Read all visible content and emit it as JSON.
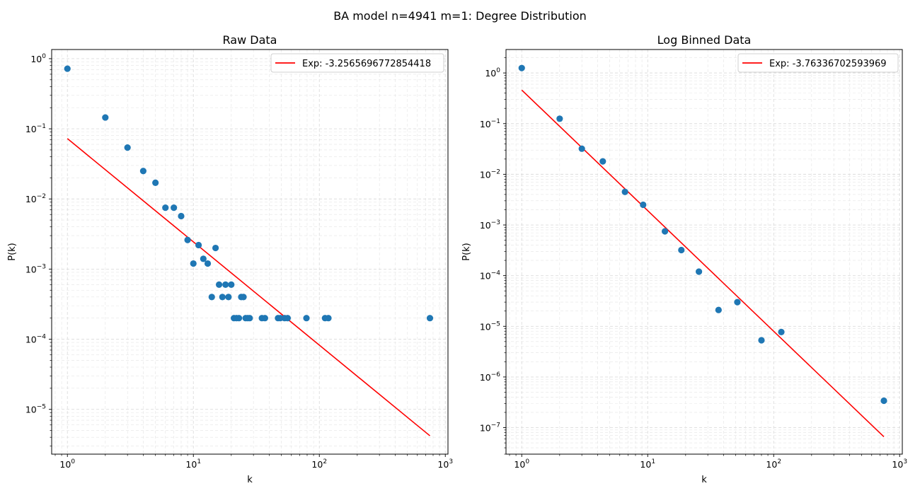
{
  "figure": {
    "suptitle": "BA model n=4941 m=1: Degree Distribution"
  },
  "colors": {
    "points": "#1f77b4",
    "fit": "#ff0000",
    "grid": "#d9d9d9"
  },
  "chart_data": [
    {
      "type": "scatter",
      "title": "Raw Data",
      "xlabel": "k",
      "ylabel": "P(k)",
      "xscale": "log",
      "yscale": "log",
      "xlim": [
        0.75,
        1050
      ],
      "ylim": [
        2.3e-06,
        1.35
      ],
      "grid": true,
      "legend": "top-right",
      "x_ticks": [
        {
          "value": 1,
          "base": "10",
          "exp": "0"
        },
        {
          "value": 10,
          "base": "10",
          "exp": "1"
        },
        {
          "value": 100,
          "base": "10",
          "exp": "2"
        },
        {
          "value": 1000,
          "base": "10",
          "exp": "3"
        }
      ],
      "y_ticks": [
        {
          "value": 1e-05,
          "base": "10",
          "exp": "−5"
        },
        {
          "value": 0.0001,
          "base": "10",
          "exp": "−4"
        },
        {
          "value": 0.001,
          "base": "10",
          "exp": "−3"
        },
        {
          "value": 0.01,
          "base": "10",
          "exp": "−2"
        },
        {
          "value": 0.1,
          "base": "10",
          "exp": "−1"
        },
        {
          "value": 1,
          "base": "10",
          "exp": "0"
        }
      ],
      "points": {
        "x": [
          1,
          2,
          3,
          4,
          5,
          6,
          7,
          8,
          9,
          10,
          11,
          12,
          13,
          14,
          15,
          16,
          17,
          18,
          19,
          20,
          21,
          22,
          23,
          24,
          25,
          26,
          27,
          28,
          35,
          37,
          47,
          49,
          53,
          56,
          79,
          111,
          118,
          755
        ],
        "y": [
          0.72,
          0.145,
          0.054,
          0.025,
          0.017,
          0.0075,
          0.0075,
          0.0057,
          0.0026,
          0.0012,
          0.0022,
          0.0014,
          0.0012,
          0.0004,
          0.002,
          0.0006,
          0.0004,
          0.0006,
          0.0004,
          0.0006,
          0.0002,
          0.0002,
          0.0002,
          0.0004,
          0.0004,
          0.0002,
          0.0002,
          0.0002,
          0.0002,
          0.0002,
          0.0002,
          0.0002,
          0.0002,
          0.0002,
          0.0002,
          0.0002,
          0.0002,
          0.0002
        ]
      },
      "fit": {
        "label": "Exp: -3.2565696772854418",
        "x": [
          1,
          755
        ],
        "y": [
          0.0725,
          4.2e-06
        ]
      }
    },
    {
      "type": "scatter",
      "title": "Log Binned Data",
      "xlabel": "k",
      "ylabel": "P(k)",
      "xscale": "log",
      "yscale": "log",
      "xlim": [
        0.75,
        1050
      ],
      "ylim": [
        3e-08,
        2.9
      ],
      "grid": true,
      "legend": "top-right",
      "x_ticks": [
        {
          "value": 1,
          "base": "10",
          "exp": "0"
        },
        {
          "value": 10,
          "base": "10",
          "exp": "1"
        },
        {
          "value": 100,
          "base": "10",
          "exp": "2"
        },
        {
          "value": 1000,
          "base": "10",
          "exp": "3"
        }
      ],
      "y_ticks": [
        {
          "value": 1e-07,
          "base": "10",
          "exp": "−7"
        },
        {
          "value": 1e-06,
          "base": "10",
          "exp": "−6"
        },
        {
          "value": 1e-05,
          "base": "10",
          "exp": "−5"
        },
        {
          "value": 0.0001,
          "base": "10",
          "exp": "−4"
        },
        {
          "value": 0.001,
          "base": "10",
          "exp": "−3"
        },
        {
          "value": 0.01,
          "base": "10",
          "exp": "−2"
        },
        {
          "value": 0.1,
          "base": "10",
          "exp": "−1"
        },
        {
          "value": 1,
          "base": "10",
          "exp": "0"
        }
      ],
      "points": {
        "x": [
          1,
          2,
          3,
          4.4,
          6.6,
          9.2,
          13.7,
          18.5,
          25.5,
          36.5,
          51.5,
          80,
          115,
          750
        ],
        "y": [
          1.25,
          0.125,
          0.032,
          0.018,
          0.0045,
          0.0025,
          0.00075,
          0.00032,
          0.00012,
          2.1e-05,
          3e-05,
          5.3e-06,
          7.7e-06,
          3.4e-07
        ]
      },
      "fit": {
        "label": "Exp: -3.76336702593969",
        "x": [
          1,
          750
        ],
        "y": [
          0.46,
          6.6e-08
        ]
      }
    }
  ]
}
